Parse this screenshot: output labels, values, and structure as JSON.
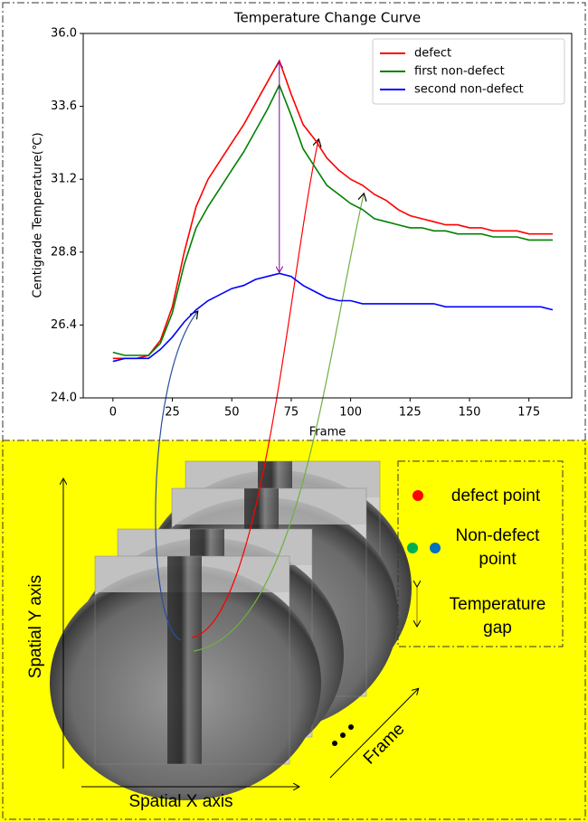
{
  "chart_data": {
    "type": "line",
    "title": "Temperature Change Curve",
    "x_label": "Frame",
    "y_label": "Centigrade Temperature(℃)",
    "x": [
      0,
      5,
      10,
      15,
      20,
      25,
      30,
      35,
      40,
      45,
      50,
      55,
      60,
      65,
      70,
      75,
      80,
      85,
      90,
      95,
      100,
      105,
      110,
      115,
      120,
      125,
      130,
      135,
      140,
      145,
      150,
      155,
      160,
      165,
      170,
      175,
      180,
      185
    ],
    "series": [
      {
        "name": "defect",
        "color": "#ff0000",
        "values": [
          25.3,
          25.3,
          25.3,
          25.4,
          25.9,
          27.0,
          28.8,
          30.3,
          31.2,
          31.8,
          32.4,
          33.0,
          33.7,
          34.4,
          35.1,
          34.0,
          33.0,
          32.5,
          31.9,
          31.5,
          31.2,
          31.0,
          30.7,
          30.5,
          30.2,
          30.0,
          29.9,
          29.8,
          29.7,
          29.7,
          29.6,
          29.6,
          29.5,
          29.5,
          29.5,
          29.4,
          29.4,
          29.4
        ]
      },
      {
        "name": "first non-defect",
        "color": "#008000",
        "values": [
          25.5,
          25.4,
          25.4,
          25.4,
          25.8,
          26.8,
          28.4,
          29.6,
          30.3,
          30.9,
          31.5,
          32.1,
          32.8,
          33.5,
          34.3,
          33.3,
          32.2,
          31.6,
          31.0,
          30.7,
          30.4,
          30.2,
          29.9,
          29.8,
          29.7,
          29.6,
          29.6,
          29.5,
          29.5,
          29.4,
          29.4,
          29.4,
          29.3,
          29.3,
          29.3,
          29.2,
          29.2,
          29.2
        ]
      },
      {
        "name": "second non-defect",
        "color": "#0000ff",
        "values": [
          25.2,
          25.3,
          25.3,
          25.3,
          25.6,
          26.0,
          26.5,
          26.9,
          27.2,
          27.4,
          27.6,
          27.7,
          27.9,
          28.0,
          28.1,
          28.0,
          27.7,
          27.5,
          27.3,
          27.2,
          27.2,
          27.1,
          27.1,
          27.1,
          27.1,
          27.1,
          27.1,
          27.1,
          27.0,
          27.0,
          27.0,
          27.0,
          27.0,
          27.0,
          27.0,
          27.0,
          27.0,
          26.9
        ]
      }
    ],
    "xlim": [
      -12.5,
      193
    ],
    "xticks": [
      0,
      25,
      50,
      75,
      100,
      125,
      150,
      175
    ],
    "ylim": [
      24,
      36
    ],
    "yticks": [
      {
        "value": 24,
        "label": "24.0"
      },
      26.4,
      28.8,
      31.2,
      33.6,
      {
        "value": 36,
        "label": "36.0"
      }
    ],
    "grid": false,
    "legend": "upper right"
  },
  "diagram": {
    "y_axis_label": "Spatial Y axis",
    "x_axis_label": "Spatial X axis",
    "frame_label": "Frame",
    "legend": [
      "defect point",
      "Non-defect point",
      "Temperature gap"
    ]
  }
}
